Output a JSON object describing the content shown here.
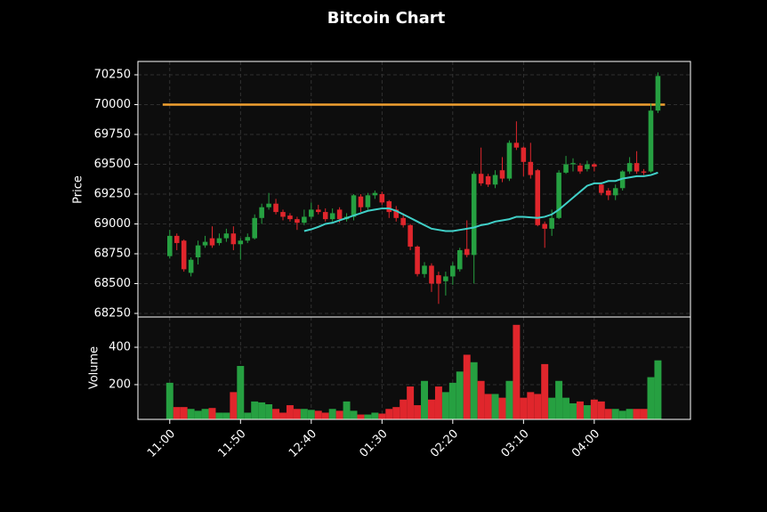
{
  "chart_data": {
    "type": "candlestick",
    "title": "Bitcoin Chart",
    "ylabel": "Price",
    "y2label": "Volume",
    "up_color": "#26a041",
    "down_color": "#e0262c",
    "ma_color": "#40d0c8",
    "grid": true,
    "xlim": [
      -4.5,
      73.6
    ],
    "xticks": [
      {
        "value": 0,
        "label": "11:00"
      },
      {
        "value": 10,
        "label": "11:50"
      },
      {
        "value": 20,
        "label": "12:40"
      },
      {
        "value": 30,
        "label": "01:30"
      },
      {
        "value": 40,
        "label": "02:20"
      },
      {
        "value": 50,
        "label": "03:10"
      },
      {
        "value": 60,
        "label": "04:00"
      }
    ],
    "ylim": [
      68220,
      70362
    ],
    "yticks": [
      68250,
      68500,
      68750,
      69000,
      69250,
      69500,
      69750,
      70000,
      70250
    ],
    "y2lim": [
      14,
      562
    ],
    "y2ticks": [
      200,
      400
    ],
    "hlines": [
      {
        "value": 70000,
        "color": "#f0a030"
      }
    ],
    "open": [
      68730,
      68900,
      68860,
      68590,
      68720,
      68820,
      68880,
      68840,
      68880,
      68920,
      68830,
      68860,
      68880,
      69050,
      69140,
      69170,
      69100,
      69070,
      69040,
      69010,
      69060,
      69120,
      69100,
      69040,
      69120,
      69040,
      69060,
      69230,
      69140,
      69240,
      69250,
      69190,
      69120,
      69050,
      68990,
      68810,
      68580,
      68650,
      68570,
      68520,
      68560,
      68620,
      68790,
      68740,
      69420,
      69400,
      69330,
      69450,
      69380,
      69680,
      69640,
      69520,
      69450,
      69000,
      68960,
      69050,
      69430,
      69500,
      69490,
      69460,
      69500,
      69330,
      69280,
      69240,
      69300,
      69440,
      69510,
      69440,
      69440,
      69950
    ],
    "high": [
      68950,
      68920,
      68870,
      68720,
      68860,
      68900,
      68980,
      68920,
      68960,
      68980,
      68880,
      68920,
      69080,
      69170,
      69260,
      69210,
      69120,
      69090,
      69060,
      69120,
      69180,
      69160,
      69130,
      69130,
      69140,
      69090,
      69250,
      69250,
      69260,
      69280,
      69270,
      69200,
      69150,
      69090,
      69000,
      68820,
      68680,
      68670,
      68600,
      68600,
      68680,
      68800,
      69030,
      69440,
      69640,
      69420,
      69450,
      69560,
      69700,
      69860,
      69650,
      69680,
      69460,
      69020,
      69120,
      69450,
      69570,
      69550,
      69510,
      69530,
      69510,
      69350,
      69300,
      69330,
      69450,
      69560,
      69610,
      69460,
      70010,
      70270
    ],
    "low": [
      68710,
      68780,
      68600,
      68560,
      68660,
      68800,
      68800,
      68820,
      68850,
      68780,
      68700,
      68840,
      68870,
      69000,
      69120,
      69080,
      69030,
      69020,
      68950,
      68990,
      69040,
      69080,
      69020,
      69020,
      69010,
      69020,
      69030,
      69100,
      69120,
      69210,
      69160,
      69050,
      69020,
      68970,
      68780,
      68560,
      68550,
      68430,
      68330,
      68400,
      68490,
      68600,
      68720,
      68500,
      69320,
      69310,
      69300,
      69350,
      69360,
      69620,
      69400,
      69380,
      68980,
      68800,
      68900,
      69040,
      69420,
      69440,
      69420,
      69440,
      69440,
      69240,
      69200,
      69200,
      69280,
      69420,
      69420,
      69410,
      69430,
      69930
    ],
    "close": [
      68900,
      68840,
      68620,
      68700,
      68820,
      68850,
      68820,
      68880,
      68920,
      68830,
      68860,
      68890,
      69050,
      69140,
      69170,
      69100,
      69060,
      69040,
      69010,
      69060,
      69120,
      69100,
      69040,
      69090,
      69040,
      69060,
      69240,
      69140,
      69240,
      69260,
      69180,
      69100,
      69050,
      68990,
      68810,
      68580,
      68650,
      68500,
      68500,
      68560,
      68650,
      68780,
      68740,
      69420,
      69340,
      69330,
      69410,
      69380,
      69680,
      69640,
      69520,
      69410,
      68990,
      68960,
      69050,
      69430,
      69500,
      69510,
      69440,
      69500,
      69480,
      69260,
      69240,
      69300,
      69440,
      69510,
      69440,
      69430,
      69950,
      70240
    ],
    "volume": [
      210,
      80,
      80,
      70,
      60,
      70,
      75,
      50,
      50,
      160,
      300,
      50,
      110,
      105,
      95,
      70,
      50,
      90,
      70,
      70,
      65,
      60,
      50,
      70,
      60,
      110,
      60,
      40,
      40,
      50,
      45,
      70,
      80,
      120,
      190,
      90,
      220,
      120,
      190,
      160,
      210,
      270,
      360,
      320,
      220,
      150,
      150,
      130,
      220,
      520,
      130,
      160,
      150,
      310,
      130,
      220,
      130,
      100,
      110,
      90,
      120,
      110,
      70,
      70,
      60,
      70,
      70,
      70,
      240,
      330
    ],
    "ma": [
      null,
      null,
      null,
      null,
      null,
      null,
      null,
      null,
      null,
      null,
      null,
      null,
      null,
      null,
      null,
      null,
      null,
      null,
      null,
      68940,
      68955,
      68975,
      69000,
      69010,
      69030,
      69050,
      69070,
      69090,
      69110,
      69120,
      69130,
      69130,
      69110,
      69080,
      69050,
      69020,
      68990,
      68960,
      68950,
      68940,
      68940,
      68950,
      68960,
      68970,
      68990,
      69000,
      69020,
      69030,
      69040,
      69060,
      69060,
      69055,
      69050,
      69060,
      69080,
      69120,
      69170,
      69220,
      69270,
      69320,
      69340,
      69340,
      69360,
      69360,
      69380,
      69390,
      69400,
      69400,
      69410,
      69430
    ]
  }
}
